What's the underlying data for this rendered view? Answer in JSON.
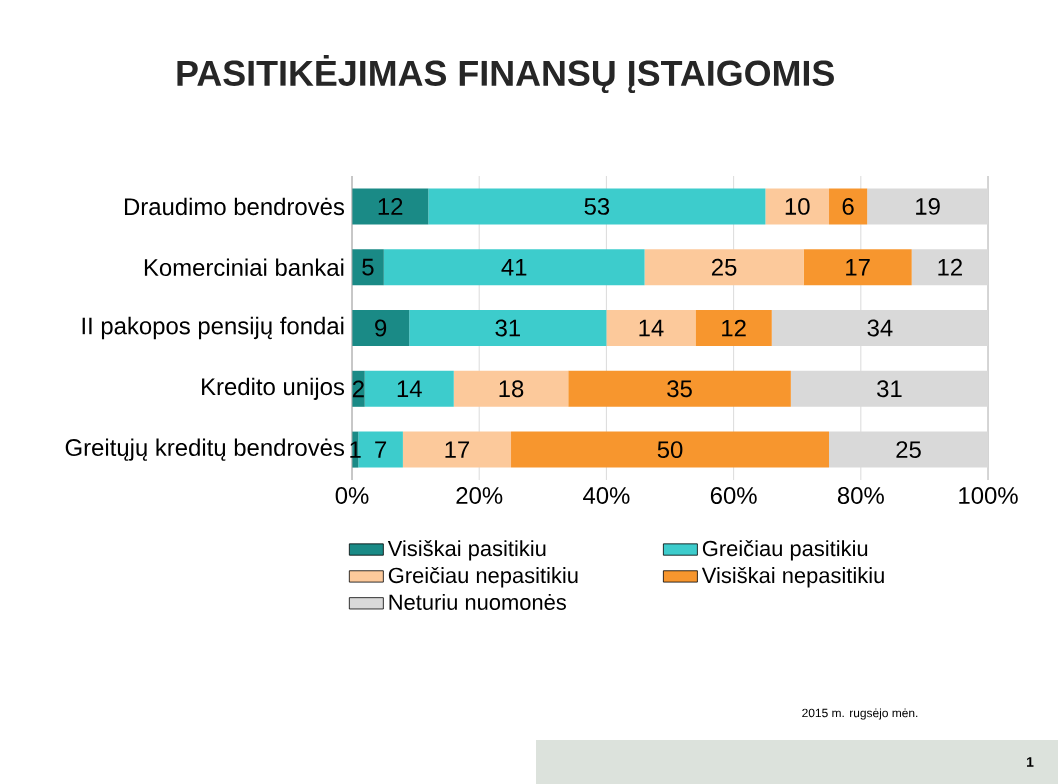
{
  "chart_data": {
    "type": "bar",
    "orientation": "horizontal",
    "stacked": true,
    "title": "PASITIKĖJIMAS FINANSŲ ĮSTAIGOMIS",
    "categories": [
      "Draudimo bendrovės",
      "Komerciniai bankai",
      "II pakopos pensijų fondai",
      "Kredito unijos",
      "Greitųjų kreditų bendrovės"
    ],
    "series": [
      {
        "name": "Visiškai pasitikiu",
        "color": "#1a8a86",
        "values": [
          12,
          5,
          9,
          2,
          1
        ]
      },
      {
        "name": "Greičiau pasitikiu",
        "color": "#3dcccc",
        "values": [
          53,
          41,
          31,
          14,
          7
        ]
      },
      {
        "name": "Greičiau nepasitikiu",
        "color": "#fcc99b",
        "values": [
          10,
          25,
          14,
          18,
          17
        ]
      },
      {
        "name": "Visiškai nepasitikiu",
        "color": "#f7962e",
        "values": [
          6,
          17,
          12,
          35,
          50
        ]
      },
      {
        "name": "Neturiu nuomonės",
        "color": "#d9d9d9",
        "values": [
          19,
          12,
          34,
          31,
          25
        ]
      }
    ],
    "xlim": [
      0,
      100
    ],
    "xticks": [
      {
        "value": 0,
        "label": "0%"
      },
      {
        "value": 20,
        "label": "20%"
      },
      {
        "value": 40,
        "label": "40%"
      },
      {
        "value": 60,
        "label": "60%"
      },
      {
        "value": 80,
        "label": "80%"
      },
      {
        "value": 100,
        "label": "100%"
      }
    ],
    "grid": "x",
    "legend": "bottom",
    "data_labels": true,
    "annotations": [
      "2015 m. rugsėjo mėn.",
      "1"
    ]
  }
}
